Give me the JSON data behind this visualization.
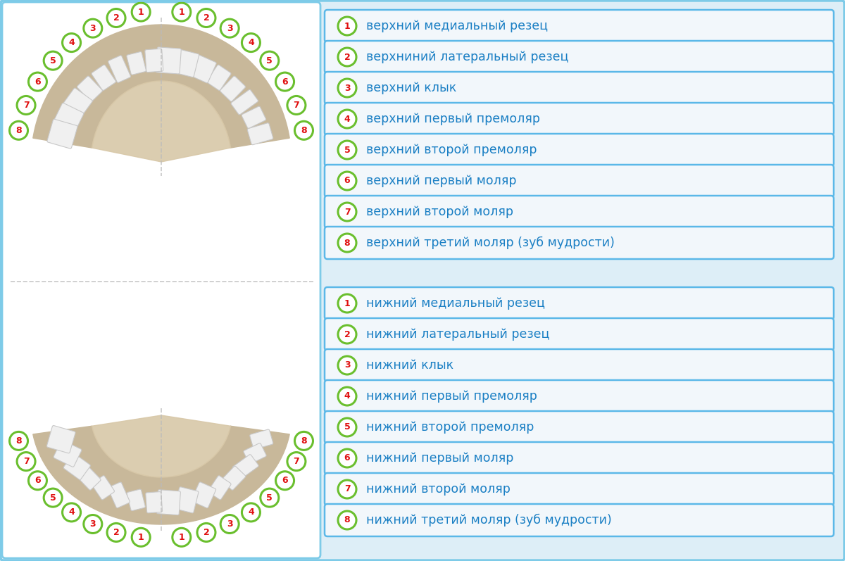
{
  "bg_color": "#ddeef7",
  "upper_labels": [
    "верхний медиальный резец",
    "верхниний латеральный резец",
    "верхний клык",
    "верхний первый премоляр",
    "верхний второй премоляр",
    "верхний первый моляр",
    "верхний второй моляр",
    "верхний третий моляр (зуб мудрости)"
  ],
  "lower_labels": [
    "нижний медиальный резец",
    "нижний латеральный резец",
    "нижний клык",
    "нижний первый премоляр",
    "нижний второй премоляр",
    "нижний первый моляр",
    "нижний второй моляр",
    "нижний третий моляр (зуб мудрости)"
  ],
  "label_bg": "#f2f7fb",
  "label_border": "#5bb8e8",
  "label_text_color": "#1a7fc4",
  "circle_border": "#6abf2e",
  "number_color": "#e01010",
  "circle_bg": "white",
  "panel_border": "#7ecbe8",
  "jaw_color": "#c8b89a",
  "palate_color": "#d8c8a8",
  "tooth_color": "#f0f0f0",
  "tooth_edge": "#c8c8c8",
  "dashed_color": "#bbbbbb"
}
